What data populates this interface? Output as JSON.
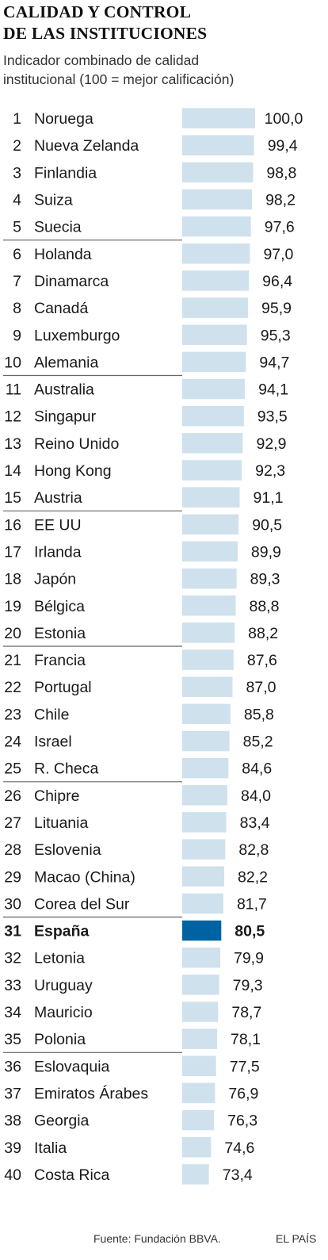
{
  "title_lines": [
    "CALIDAD Y CONTROL",
    "DE LAS INSTITUCIONES"
  ],
  "subtitle_lines": [
    "Indicador combinado de calidad",
    "institucional (100 = mejor calificación)"
  ],
  "source": "Fuente: Fundación BBVA.",
  "brand": "EL PAÍS",
  "colors": {
    "bar": "#cfe1ec",
    "highlight_bar": "#0063a1",
    "divider": "#666666",
    "text": "#1a1a1a"
  },
  "chart_data": {
    "type": "bar",
    "orientation": "horizontal",
    "title": "CALIDAD Y CONTROL DE LAS INSTITUCIONES",
    "subtitle": "Indicador combinado de calidad institucional (100 = mejor calificación)",
    "ranks": [
      1,
      2,
      3,
      4,
      5,
      6,
      7,
      8,
      9,
      10,
      11,
      12,
      13,
      14,
      15,
      16,
      17,
      18,
      19,
      20,
      21,
      22,
      23,
      24,
      25,
      26,
      27,
      28,
      29,
      30,
      31,
      32,
      33,
      34,
      35,
      36,
      37,
      38,
      39,
      40
    ],
    "categories": [
      "Noruega",
      "Nueva Zelanda",
      "Finlandia",
      "Suiza",
      "Suecia",
      "Holanda",
      "Dinamarca",
      "Canadá",
      "Luxemburgo",
      "Alemania",
      "Australia",
      "Singapur",
      "Reino Unido",
      "Hong Kong",
      "Austria",
      "EE UU",
      "Irlanda",
      "Japón",
      "Bélgica",
      "Estonia",
      "Francia",
      "Portugal",
      "Chile",
      "Israel",
      "R. Checa",
      "Chipre",
      "Lituania",
      "Eslovenia",
      "Macao (China)",
      "Corea del Sur",
      "España",
      "Letonia",
      "Uruguay",
      "Mauricio",
      "Polonia",
      "Eslovaquia",
      "Emiratos Árabes",
      "Georgia",
      "Italia",
      "Costa Rica"
    ],
    "values": [
      100.0,
      99.4,
      98.8,
      98.2,
      97.6,
      97.0,
      96.4,
      95.9,
      95.3,
      94.7,
      94.1,
      93.5,
      92.9,
      92.3,
      91.1,
      90.5,
      89.9,
      89.3,
      88.8,
      88.2,
      87.6,
      87.0,
      85.8,
      85.2,
      84.6,
      84.0,
      83.4,
      82.8,
      82.2,
      81.7,
      80.5,
      79.9,
      79.3,
      78.7,
      78.1,
      77.5,
      76.9,
      76.3,
      74.6,
      73.4
    ],
    "value_labels": [
      "100,0",
      "99,4",
      "98,8",
      "98,2",
      "97,6",
      "97,0",
      "96,4",
      "95,9",
      "95,3",
      "94,7",
      "94,1",
      "93,5",
      "92,9",
      "92,3",
      "91,1",
      "90,5",
      "89,9",
      "89,3",
      "88,8",
      "88,2",
      "87,6",
      "87,0",
      "85,8",
      "85,2",
      "84,6",
      "84,0",
      "83,4",
      "82,8",
      "82,2",
      "81,7",
      "80,5",
      "79,9",
      "79,3",
      "78,7",
      "78,1",
      "77,5",
      "76,9",
      "76,3",
      "74,6",
      "73,4"
    ],
    "highlight": "España",
    "group_size": 5
  }
}
